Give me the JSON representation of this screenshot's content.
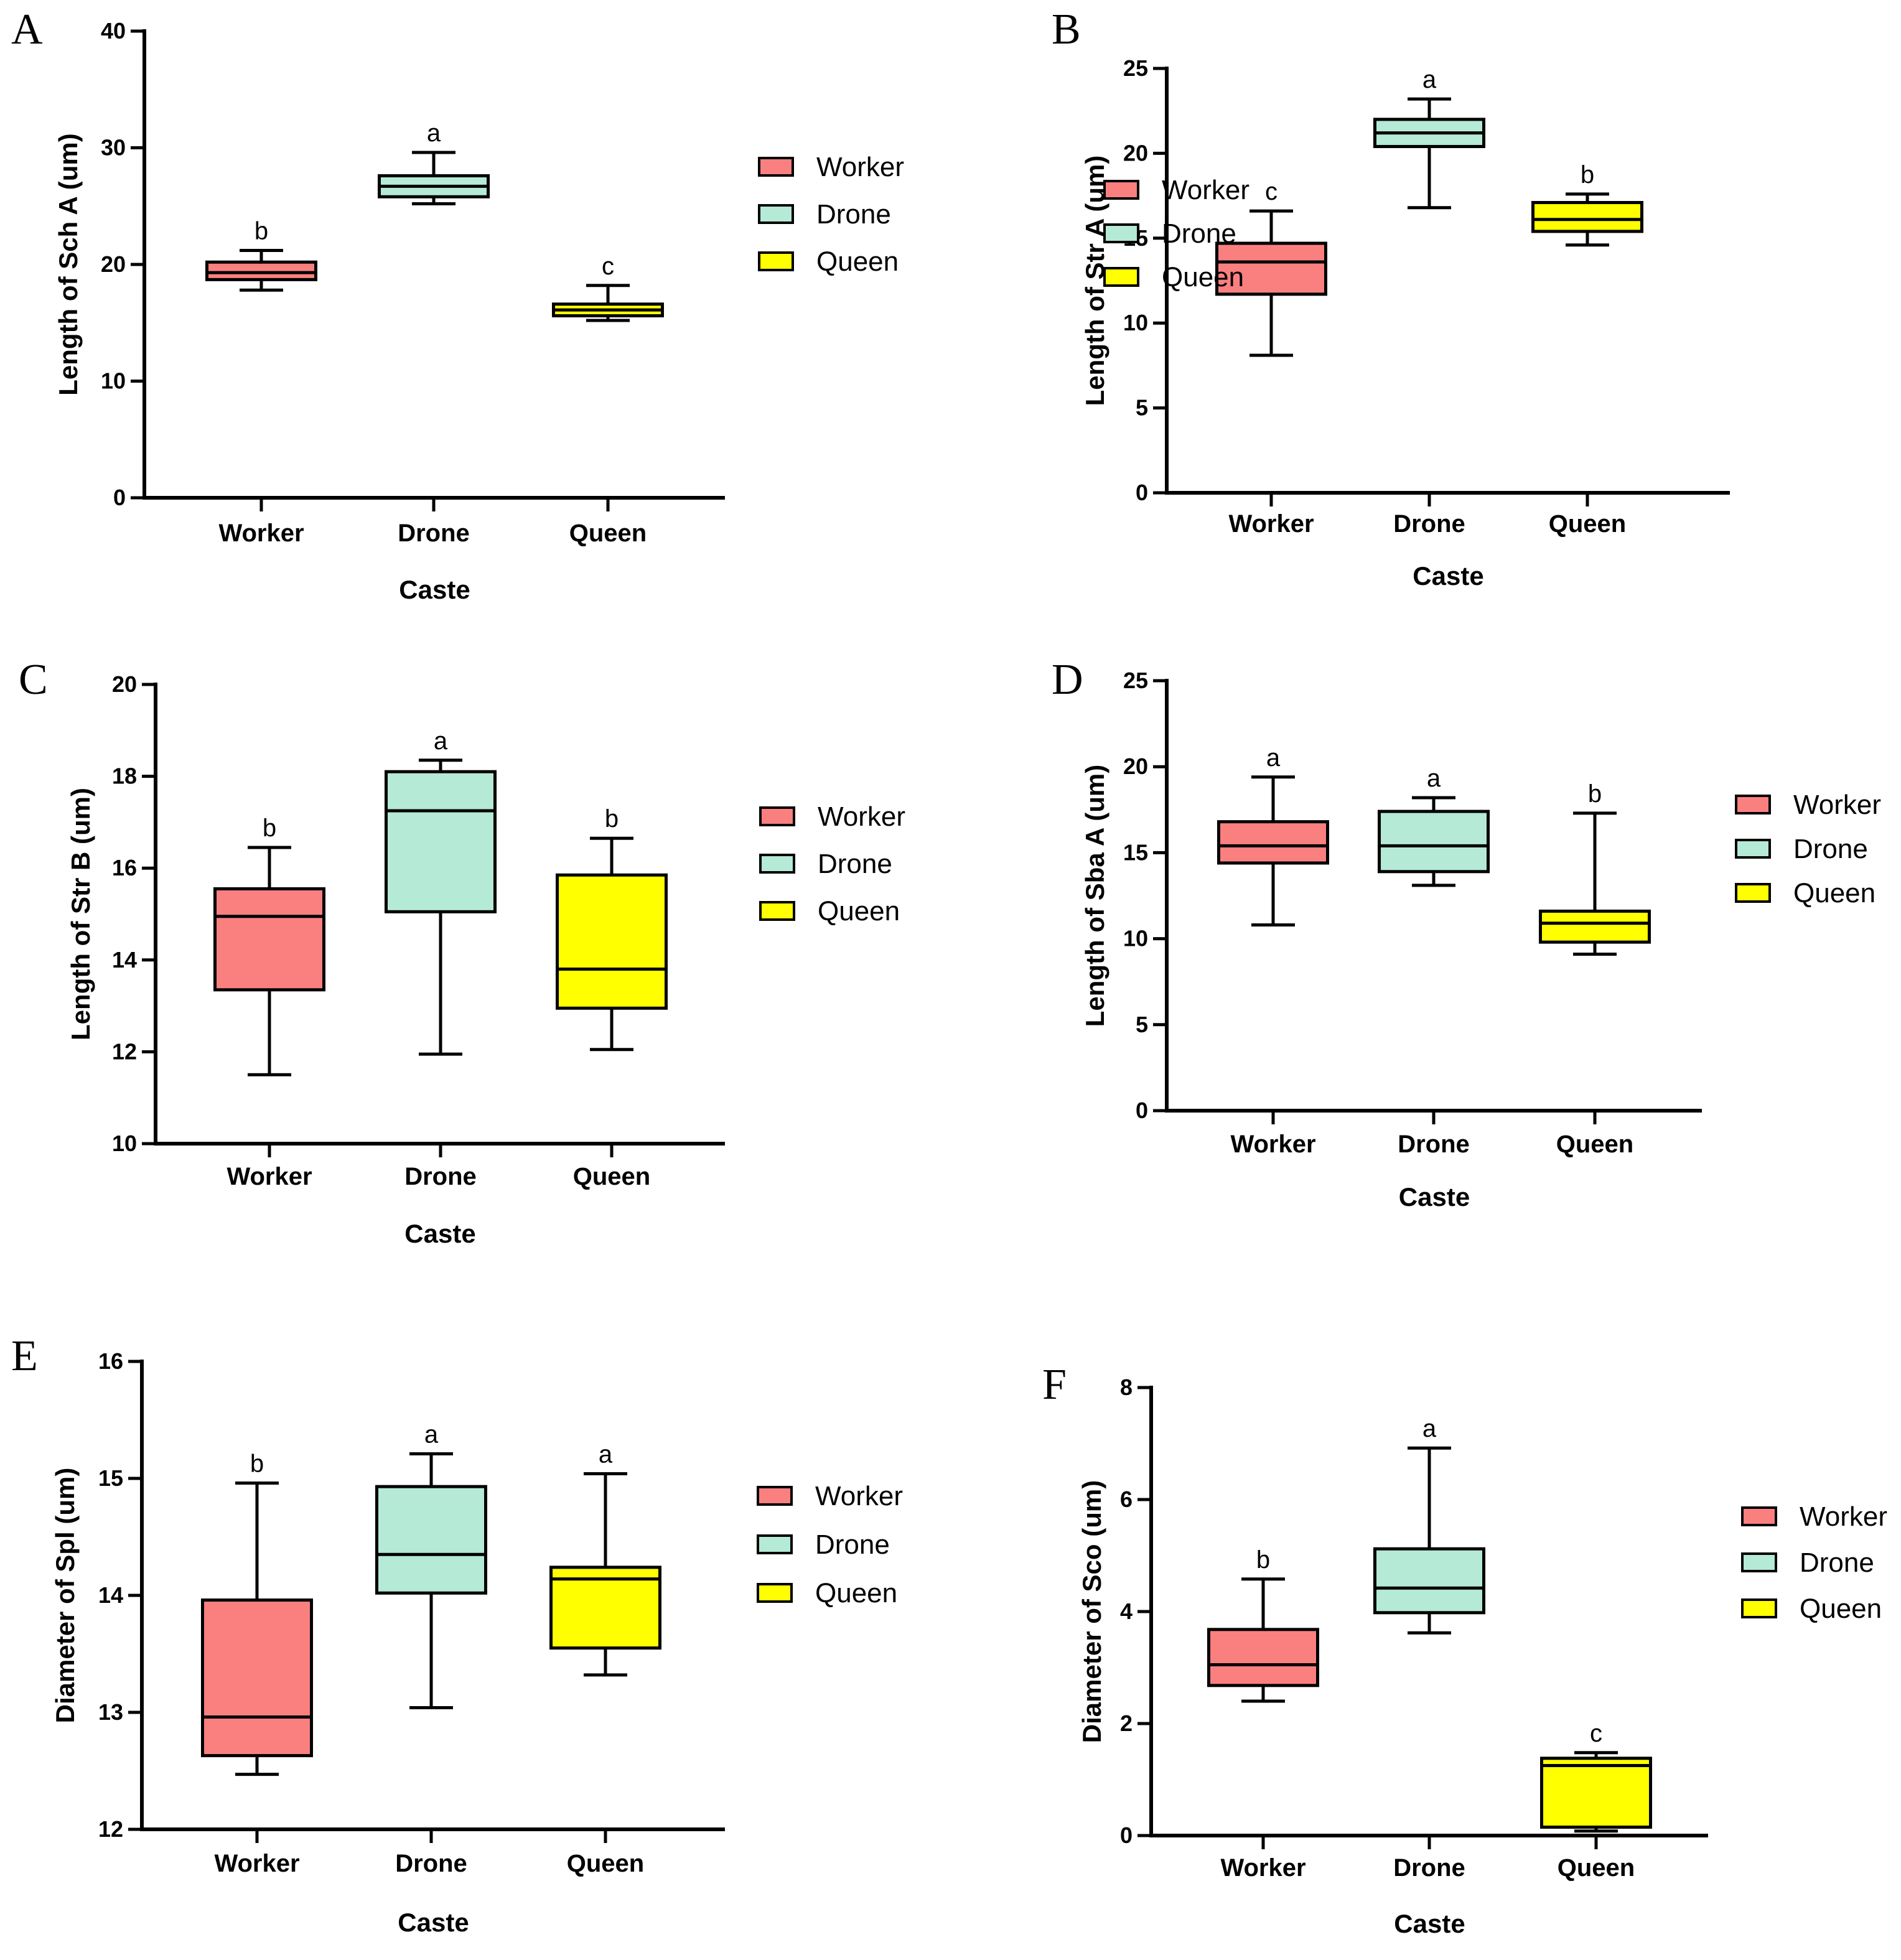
{
  "chart_data": [
    {
      "panel": "A",
      "type": "boxplot",
      "ylabel": "Length of Sch A (um)",
      "xlabel": "Caste",
      "ylim": [
        0,
        40
      ],
      "yticks": [
        0,
        10,
        20,
        30,
        40
      ],
      "categories": [
        "Worker",
        "Drone",
        "Queen"
      ],
      "boxes": [
        {
          "min": 17.8,
          "q1": 18.7,
          "median": 19.3,
          "q3": 20.2,
          "max": 21.2,
          "sig": "b"
        },
        {
          "min": 25.2,
          "q1": 25.8,
          "median": 26.7,
          "q3": 27.6,
          "max": 29.6,
          "sig": "a"
        },
        {
          "min": 15.2,
          "q1": 15.6,
          "median": 16.1,
          "q3": 16.6,
          "max": 18.2,
          "sig": "c"
        }
      ]
    },
    {
      "panel": "B",
      "type": "boxplot",
      "ylabel": "Length of Str A (um)",
      "xlabel": "Caste",
      "ylim": [
        0,
        25
      ],
      "yticks": [
        0,
        5,
        10,
        15,
        20,
        25
      ],
      "categories": [
        "Worker",
        "Drone",
        "Queen"
      ],
      "boxes": [
        {
          "min": 8.1,
          "q1": 11.7,
          "median": 13.6,
          "q3": 14.7,
          "max": 16.6,
          "sig": "c"
        },
        {
          "min": 16.8,
          "q1": 20.4,
          "median": 21.2,
          "q3": 22.0,
          "max": 23.2,
          "sig": "a"
        },
        {
          "min": 14.6,
          "q1": 15.4,
          "median": 16.1,
          "q3": 17.1,
          "max": 17.6,
          "sig": "b"
        }
      ]
    },
    {
      "panel": "C",
      "type": "boxplot",
      "ylabel": "Length of Str B (um)",
      "xlabel": "Caste",
      "ylim": [
        10,
        20
      ],
      "yticks": [
        10,
        12,
        14,
        16,
        18,
        20
      ],
      "categories": [
        "Worker",
        "Drone",
        "Queen"
      ],
      "boxes": [
        {
          "min": 11.5,
          "q1": 13.35,
          "median": 14.95,
          "q3": 15.55,
          "max": 16.45,
          "sig": "b"
        },
        {
          "min": 11.95,
          "q1": 15.05,
          "median": 17.25,
          "q3": 18.1,
          "max": 18.35,
          "sig": "a"
        },
        {
          "min": 12.05,
          "q1": 12.95,
          "median": 13.8,
          "q3": 15.85,
          "max": 16.65,
          "sig": "b"
        }
      ]
    },
    {
      "panel": "D",
      "type": "boxplot",
      "ylabel": "Length of Sba A (um)",
      "xlabel": "Caste",
      "ylim": [
        0,
        25
      ],
      "yticks": [
        0,
        5,
        10,
        15,
        20,
        25
      ],
      "categories": [
        "Worker",
        "Drone",
        "Queen"
      ],
      "boxes": [
        {
          "min": 10.8,
          "q1": 14.4,
          "median": 15.4,
          "q3": 16.8,
          "max": 19.4,
          "sig": "a"
        },
        {
          "min": 13.1,
          "q1": 13.9,
          "median": 15.4,
          "q3": 17.4,
          "max": 18.2,
          "sig": "a"
        },
        {
          "min": 9.1,
          "q1": 9.8,
          "median": 10.9,
          "q3": 11.6,
          "max": 17.3,
          "sig": "b"
        }
      ]
    },
    {
      "panel": "E",
      "type": "boxplot",
      "ylabel": "Diameter of Spl (um)",
      "xlabel": "Caste",
      "ylim": [
        12,
        16
      ],
      "yticks": [
        12,
        13,
        14,
        15,
        16
      ],
      "categories": [
        "Worker",
        "Drone",
        "Queen"
      ],
      "boxes": [
        {
          "min": 12.47,
          "q1": 12.63,
          "median": 12.96,
          "q3": 13.96,
          "max": 14.96,
          "sig": "b"
        },
        {
          "min": 13.04,
          "q1": 14.02,
          "median": 14.35,
          "q3": 14.93,
          "max": 15.21,
          "sig": "a"
        },
        {
          "min": 13.32,
          "q1": 13.55,
          "median": 14.14,
          "q3": 14.24,
          "max": 15.04,
          "sig": "a"
        }
      ]
    },
    {
      "panel": "F",
      "type": "boxplot",
      "ylabel": "Diameter of Sco (um)",
      "xlabel": "Caste",
      "ylim": [
        0,
        8
      ],
      "yticks": [
        0,
        2,
        4,
        6,
        8
      ],
      "categories": [
        "Worker",
        "Drone",
        "Queen"
      ],
      "boxes": [
        {
          "min": 2.4,
          "q1": 2.68,
          "median": 3.05,
          "q3": 3.68,
          "max": 4.58,
          "sig": "b"
        },
        {
          "min": 3.62,
          "q1": 3.98,
          "median": 4.42,
          "q3": 5.12,
          "max": 6.92,
          "sig": "a"
        },
        {
          "min": 0.08,
          "q1": 0.15,
          "median": 1.25,
          "q3": 1.38,
          "max": 1.48,
          "sig": "c"
        }
      ]
    }
  ],
  "legend": [
    {
      "label": "Worker",
      "color": "#FA8080"
    },
    {
      "label": "Drone",
      "color": "#B4EAD6"
    },
    {
      "label": "Queen",
      "color": "#FFFF00"
    }
  ],
  "category_colors": [
    "#FA8080",
    "#B4EAD6",
    "#FFFF00"
  ]
}
